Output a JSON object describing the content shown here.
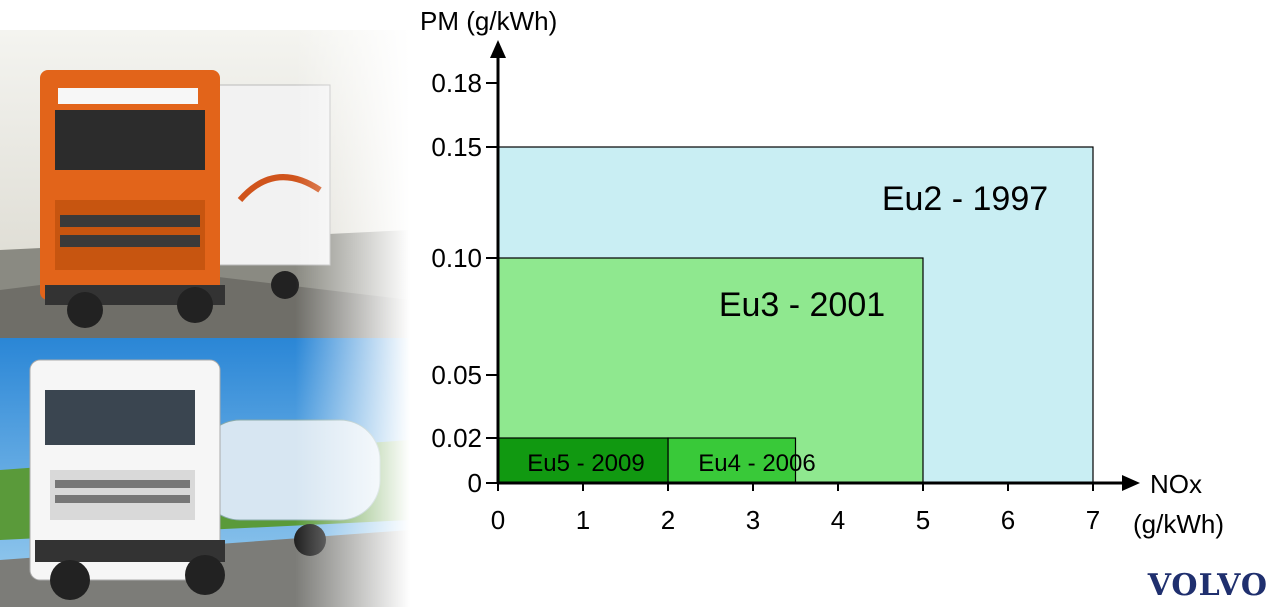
{
  "chart_data": {
    "type": "rectangle-regions",
    "xlabel_line1": "NOx",
    "xlabel_line2": "(g/kWh)",
    "ylabel": "PM (g/kWh)",
    "xlim": [
      0,
      7
    ],
    "ylim": [
      0,
      0.18
    ],
    "x_ticks": [
      "0",
      "1",
      "2",
      "3",
      "4",
      "5",
      "6",
      "7"
    ],
    "x_tick_values": [
      0,
      1,
      2,
      3,
      4,
      5,
      6,
      7
    ],
    "y_ticks": [
      "0",
      "0.02",
      "0.05",
      "0.10",
      "0.15",
      "0.18"
    ],
    "y_tick_values": [
      0,
      0.02,
      0.05,
      0.1,
      0.15,
      0.18
    ],
    "regions": [
      {
        "name": "Eu2 - 1997",
        "x": [
          0,
          7
        ],
        "y": [
          0,
          0.15
        ],
        "color": "#c9eef3"
      },
      {
        "name": "Eu3 - 2001",
        "x": [
          0,
          5
        ],
        "y": [
          0,
          0.1
        ],
        "color": "#8fe88f"
      },
      {
        "name": "Eu4 - 2006",
        "x": [
          2,
          3.5
        ],
        "y": [
          0,
          0.02
        ],
        "color": "#39c939"
      },
      {
        "name": "Eu5 - 2009",
        "x": [
          0,
          2
        ],
        "y": [
          0,
          0.02
        ],
        "color": "#119911"
      }
    ]
  },
  "logo": {
    "text": "VOLVO",
    "color": "#1f2f6e"
  }
}
